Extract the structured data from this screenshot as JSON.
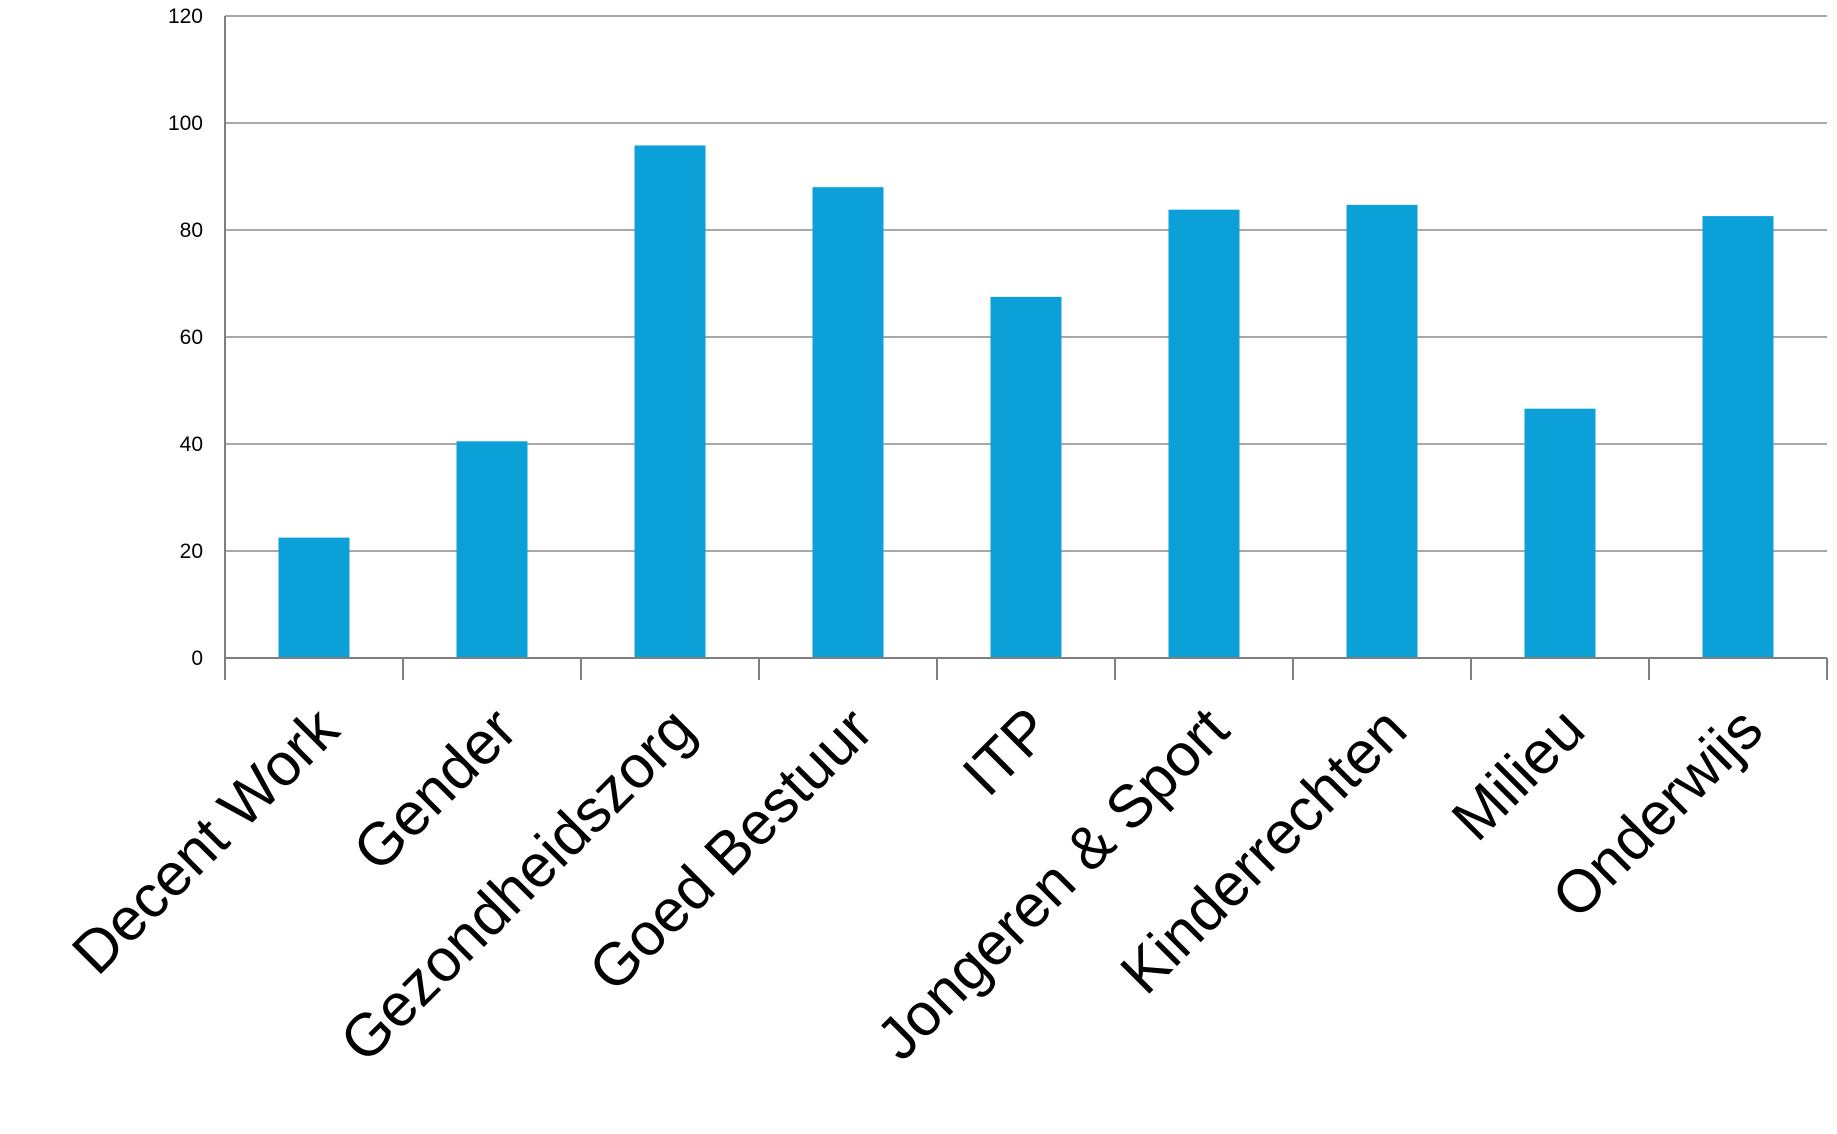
{
  "chart_data": {
    "type": "bar",
    "title": "",
    "xlabel": "",
    "ylabel": "",
    "categories": [
      "Decent Work",
      "Gender",
      "Gezondheidszorg",
      "Goed Bestuur",
      "ITP",
      "Jongeren & Sport",
      "Kinderrechten",
      "Milieu",
      "Onderwijs"
    ],
    "values": [
      22.5,
      40.5,
      95.8,
      88,
      67.5,
      83.8,
      84.7,
      46.6,
      82.6
    ],
    "ylim": [
      0,
      120
    ],
    "yticks": [
      "0",
      "20",
      "40",
      "60",
      "80",
      "100",
      "120"
    ],
    "grid": true,
    "legend": "none",
    "bar_color": "#0ca0d8",
    "gridline_color": "#8c8c8c",
    "axis_color": "#7f7f7f"
  }
}
